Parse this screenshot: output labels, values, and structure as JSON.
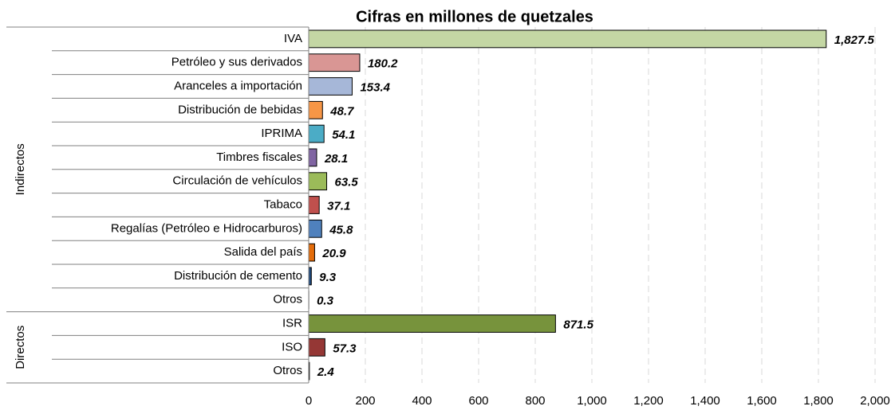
{
  "chart_data": {
    "type": "bar",
    "orientation": "horizontal",
    "title": "Cifras en millones de quetzales",
    "groups": [
      {
        "name": "Indirectos",
        "categories": [
          "IVA",
          "Petróleo y sus derivados",
          "Aranceles a importación",
          "Distribución de bebidas",
          "IPRIMA",
          "Timbres fiscales",
          "Circulación de vehículos",
          "Tabaco",
          "Regalías (Petróleo e Hidrocarburos)",
          "Salida del país",
          "Distribución de cemento",
          "Otros"
        ],
        "values": [
          1827.5,
          180.2,
          153.4,
          48.7,
          54.1,
          28.1,
          63.5,
          37.1,
          45.8,
          20.9,
          9.3,
          0.3
        ],
        "value_labels": [
          "1,827.5",
          "180.2",
          "153.4",
          "48.7",
          "54.1",
          "28.1",
          "63.5",
          "37.1",
          "45.8",
          "20.9",
          "9.3",
          "0.3"
        ],
        "colors": [
          "#c4d7a4",
          "#d99694",
          "#a6b7d8",
          "#f79646",
          "#4bacc6",
          "#8064a2",
          "#9bbb59",
          "#c0504d",
          "#4f81bd",
          "#e46c0a",
          "#1f497d",
          "#a5a5a5"
        ]
      },
      {
        "name": "Directos",
        "categories": [
          "ISR",
          "ISO",
          "Otros"
        ],
        "values": [
          871.5,
          57.3,
          2.4
        ],
        "value_labels": [
          "871.5",
          "57.3",
          "2.4"
        ],
        "colors": [
          "#77933c",
          "#953735",
          "#a5a5a5"
        ]
      }
    ],
    "xlim": [
      0,
      2000
    ],
    "xticks": [
      0,
      200,
      400,
      600,
      800,
      {
        "value": 1000,
        "label": "1,000"
      },
      {
        "value": 1200,
        "label": "1,200"
      },
      {
        "value": 1400,
        "label": "1,400"
      },
      {
        "value": 1600,
        "label": "1,600"
      },
      {
        "value": 1800,
        "label": "1,800"
      },
      {
        "value": 2000,
        "label": "2,000"
      }
    ],
    "grid": true
  }
}
